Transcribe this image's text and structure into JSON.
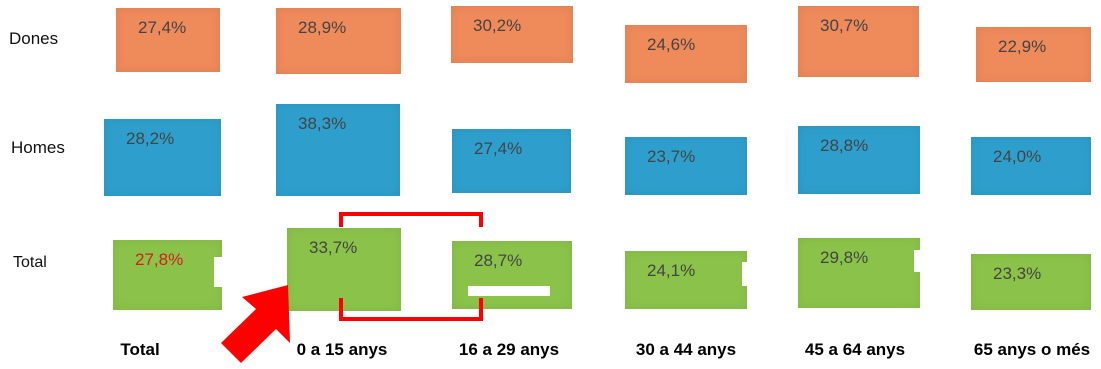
{
  "colors": {
    "women": "#ef8a5b",
    "men": "#2e9fcc",
    "total": "#8bc34a",
    "value_text": "#444444",
    "highlight_text": "#d21f1f",
    "marker": "#ff0000"
  },
  "chart_data": {
    "type": "table",
    "title": "",
    "categories": [
      "Total",
      "0 a 15 anys",
      "16 a 29 anys",
      "30 a 44 anys",
      "45 a 64 anys",
      "65 anys o més"
    ],
    "series": [
      {
        "name": "Dones",
        "values": [
          27.4,
          28.9,
          30.2,
          24.6,
          30.7,
          22.9
        ],
        "labels": [
          "27,4%",
          "28,9%",
          "30,2%",
          "24,6%",
          "30,7%",
          "22,9%"
        ]
      },
      {
        "name": "Homes",
        "values": [
          28.2,
          38.3,
          27.4,
          23.7,
          28.8,
          24.0
        ],
        "labels": [
          "28,2%",
          "38,3%",
          "27,4%",
          "23,7%",
          "28,8%",
          "24,0%"
        ]
      },
      {
        "name": "Total",
        "values": [
          27.8,
          33.7,
          28.7,
          24.1,
          29.8,
          23.3
        ],
        "labels": [
          "27,8%",
          "33,7%",
          "28,7%",
          "24,1%",
          "29,8%",
          "23,3%"
        ]
      }
    ],
    "highlighted_cell": {
      "series": "Total",
      "category": "Total"
    },
    "annotations": [
      {
        "kind": "arrow",
        "points_to": "0 a 15 anys"
      },
      {
        "kind": "bracket",
        "spans": [
          "0 a 15 anys",
          "16 a 29 anys"
        ]
      }
    ]
  }
}
